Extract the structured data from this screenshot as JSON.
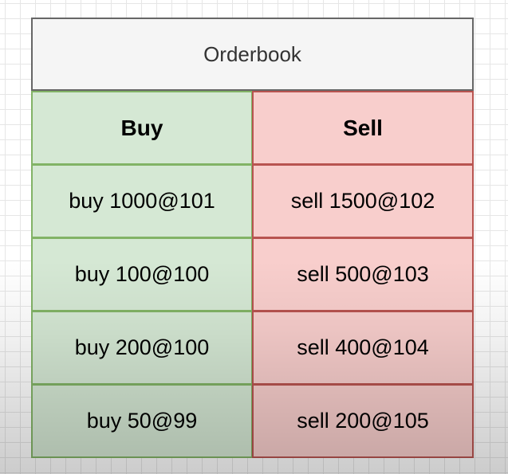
{
  "diagram": {
    "title": "Orderbook",
    "buy": {
      "header": "Buy",
      "orders": [
        "buy 1000@101",
        "buy 100@100",
        "buy 200@100",
        "buy 50@99"
      ]
    },
    "sell": {
      "header": "Sell",
      "orders": [
        "sell 1500@102",
        "sell 500@103",
        "sell 400@104",
        "sell 200@105"
      ]
    },
    "colors": {
      "buy_fill": "#d5e8d4",
      "buy_border": "#82b366",
      "sell_fill": "#f8cecc",
      "sell_border": "#b85450",
      "title_fill": "#f5f5f5",
      "title_border": "#666666"
    }
  }
}
